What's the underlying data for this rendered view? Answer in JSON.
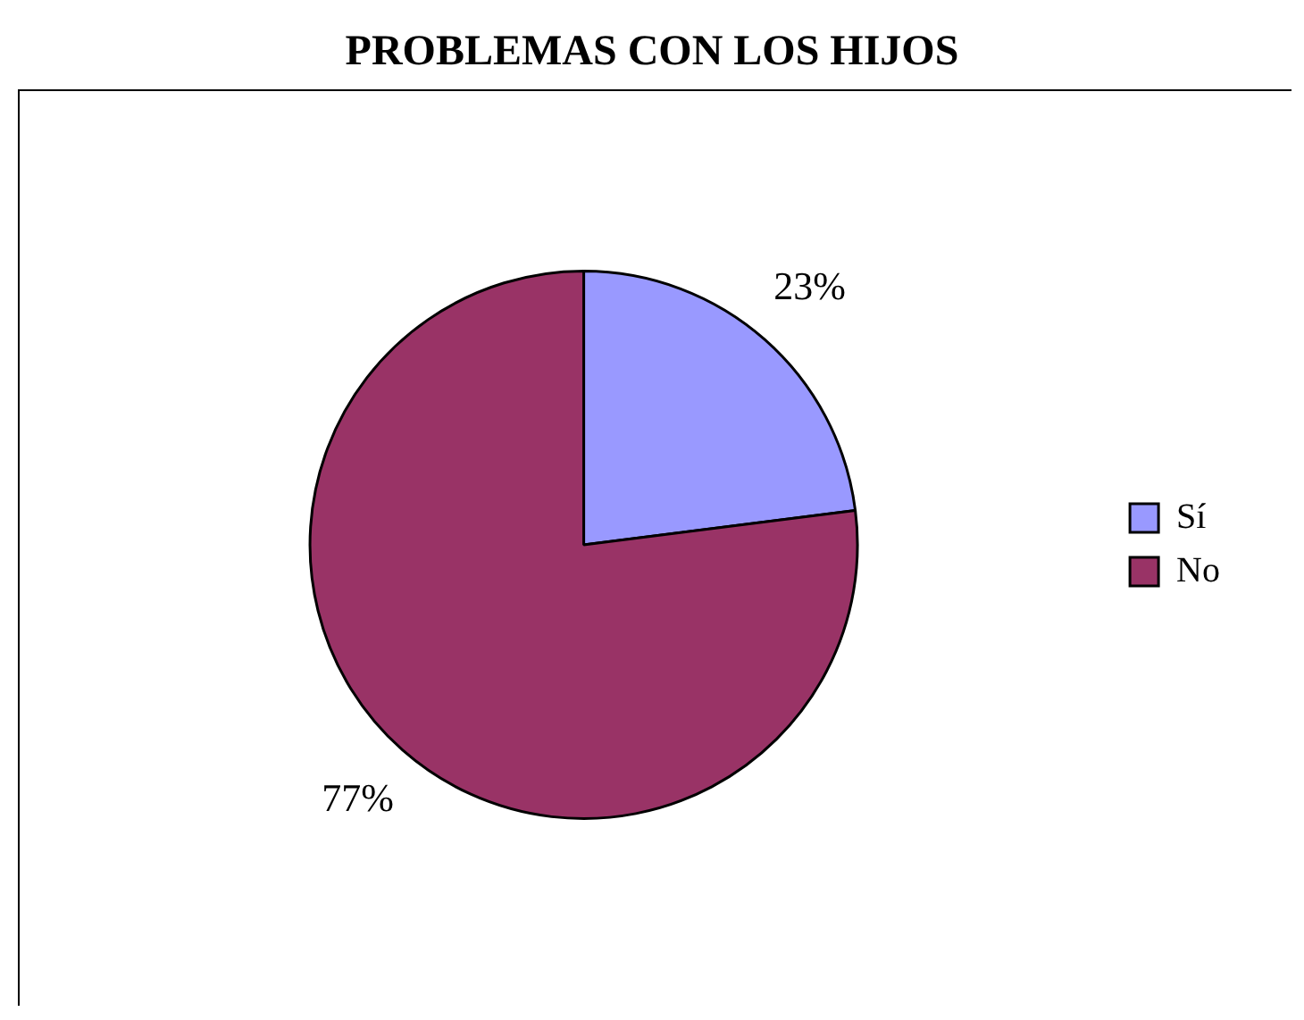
{
  "chart_data": {
    "type": "pie",
    "title": "PROBLEMAS CON LOS HIJOS",
    "categories": [
      "Sí",
      "No"
    ],
    "values": [
      23,
      77
    ],
    "value_labels": [
      "23%",
      "77%"
    ],
    "colors": [
      "#9999ff",
      "#993366"
    ],
    "legend": "right"
  }
}
